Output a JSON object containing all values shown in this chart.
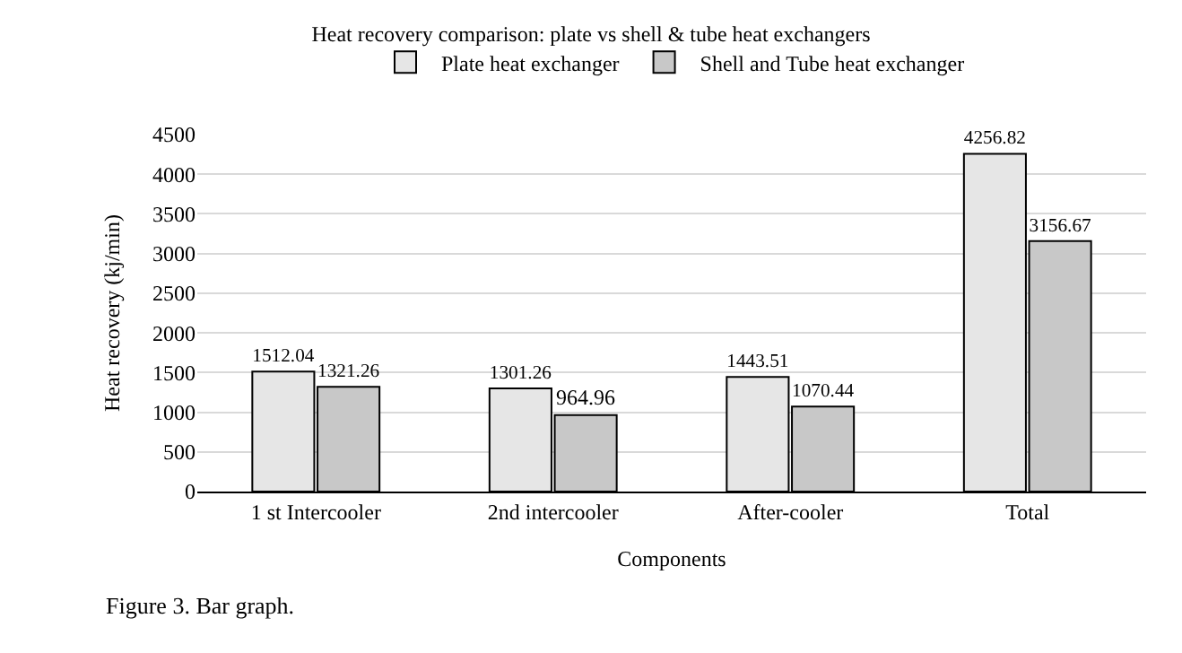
{
  "chart_data": {
    "type": "bar",
    "title": "Heat recovery comparison: plate vs shell & tube heat exchangers",
    "xlabel": "Components",
    "ylabel": "Heat recovery (kj/min)",
    "categories": [
      "1 st Intercooler",
      "2nd intercooler",
      "After-cooler",
      "Total"
    ],
    "series": [
      {
        "name": "Plate heat exchanger",
        "color": "#e6e6e6",
        "values": [
          1512.04,
          1301.26,
          1443.51,
          4256.82
        ]
      },
      {
        "name": "Shell and Tube heat exchanger",
        "color": "#c8c8c8",
        "values": [
          1321.26,
          964.96,
          1070.44,
          3156.67
        ]
      }
    ],
    "ylim": [
      0,
      4500
    ],
    "yticks": [
      0,
      500,
      1000,
      1500,
      2000,
      2500,
      3000,
      3500,
      4000,
      4500
    ],
    "grid": "y",
    "legend": "top",
    "data_labels": true,
    "annotations": [
      "Figure 3. Bar graph."
    ]
  }
}
